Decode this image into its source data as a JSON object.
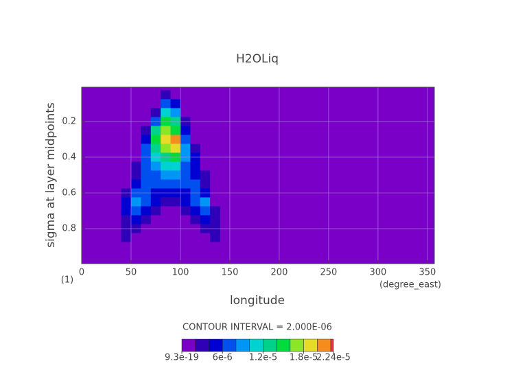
{
  "chart_data": {
    "type": "contour",
    "title": "H2OLiq",
    "xlabel": "longitude",
    "ylabel": "sigma at layer midpoints",
    "x_units": "(degree_east)",
    "y_units": "(1)",
    "annotation": "CONTOUR INTERVAL = 2.000E-06",
    "xlim": [
      0,
      357
    ],
    "xticks": [
      0,
      50,
      100,
      150,
      200,
      250,
      300,
      350
    ],
    "ylim": [
      0.008,
      0.996
    ],
    "yticks": [
      0.2,
      0.4,
      0.6,
      0.8
    ],
    "y_inverted": true,
    "grid": true,
    "x": [
      45,
      55,
      65,
      75,
      85,
      95,
      105,
      115,
      125,
      135
    ],
    "y": [
      0.05,
      0.1,
      0.15,
      0.2,
      0.25,
      0.3,
      0.35,
      0.4,
      0.45,
      0.5,
      0.55,
      0.6,
      0.65,
      0.7,
      0.75,
      0.8,
      0.85,
      0.9
    ],
    "z": [
      [
        0,
        0,
        0,
        0,
        2e-06,
        0,
        0,
        0,
        0,
        0
      ],
      [
        0,
        0,
        0,
        0,
        6e-06,
        4e-06,
        0,
        0,
        0,
        0
      ],
      [
        0,
        0,
        0,
        2e-06,
        1e-05,
        8e-06,
        0,
        0,
        0,
        0
      ],
      [
        0,
        0,
        0,
        6e-06,
        1.4e-05,
        1.2e-05,
        2e-06,
        0,
        0,
        0
      ],
      [
        0,
        0,
        2e-06,
        1.2e-05,
        1.6e-05,
        1.4e-05,
        4e-06,
        0,
        0,
        0
      ],
      [
        0,
        0,
        4e-06,
        1.4e-05,
        1.8e-05,
        2e-05,
        6e-06,
        0,
        0,
        0
      ],
      [
        0,
        0,
        6e-06,
        1.2e-05,
        1.6e-05,
        1.8e-05,
        8e-06,
        2e-06,
        0,
        0
      ],
      [
        0,
        0,
        6e-06,
        1e-05,
        1.2e-05,
        1.4e-05,
        8e-06,
        4e-06,
        0,
        0
      ],
      [
        0,
        2e-06,
        6e-06,
        8e-06,
        1e-05,
        1e-05,
        6e-06,
        4e-06,
        0,
        0
      ],
      [
        0,
        2e-06,
        6e-06,
        6e-06,
        8e-06,
        8e-06,
        6e-06,
        4e-06,
        2e-06,
        0
      ],
      [
        0,
        4e-06,
        6e-06,
        6e-06,
        6e-06,
        6e-06,
        6e-06,
        6e-06,
        2e-06,
        0
      ],
      [
        2e-06,
        6e-06,
        6e-06,
        4e-06,
        4e-06,
        4e-06,
        4e-06,
        6e-06,
        4e-06,
        0
      ],
      [
        4e-06,
        8e-06,
        6e-06,
        4e-06,
        2e-06,
        2e-06,
        4e-06,
        6e-06,
        8e-06,
        0
      ],
      [
        4e-06,
        6e-06,
        4e-06,
        2e-06,
        0,
        0,
        2e-06,
        4e-06,
        6e-06,
        2e-06
      ],
      [
        2e-06,
        4e-06,
        2e-06,
        0,
        0,
        0,
        0,
        2e-06,
        4e-06,
        2e-06
      ],
      [
        2e-06,
        2e-06,
        0,
        0,
        0,
        0,
        0,
        0,
        2e-06,
        2e-06
      ],
      [
        2e-06,
        0,
        0,
        0,
        0,
        0,
        0,
        0,
        0,
        2e-06
      ],
      [
        0,
        0,
        0,
        0,
        0,
        0,
        0,
        0,
        0,
        0
      ]
    ],
    "levels": [
      9.3e-19,
      2e-06,
      4e-06,
      6e-06,
      8e-06,
      1e-05,
      1.2e-05,
      1.4e-05,
      1.6e-05,
      1.8e-05,
      2e-05,
      2.2e-05,
      2.24e-05
    ],
    "colors": [
      "#7a00c8",
      "#3000b8",
      "#0000d2",
      "#0050f0",
      "#0096f5",
      "#00d2d2",
      "#00d28c",
      "#00dc3c",
      "#8ce628",
      "#e6dc28",
      "#f58c1e",
      "#fa3232"
    ],
    "colorbar_ticks": [
      {
        "value": 9.3e-19,
        "label": "9.3e-19"
      },
      {
        "value": 6e-06,
        "label": "6e-6"
      },
      {
        "value": 1.2e-05,
        "label": "1.2e-5"
      },
      {
        "value": 1.8e-05,
        "label": "1.8e-5"
      },
      {
        "value": 2.24e-05,
        "label": "2.24e-5"
      }
    ]
  }
}
